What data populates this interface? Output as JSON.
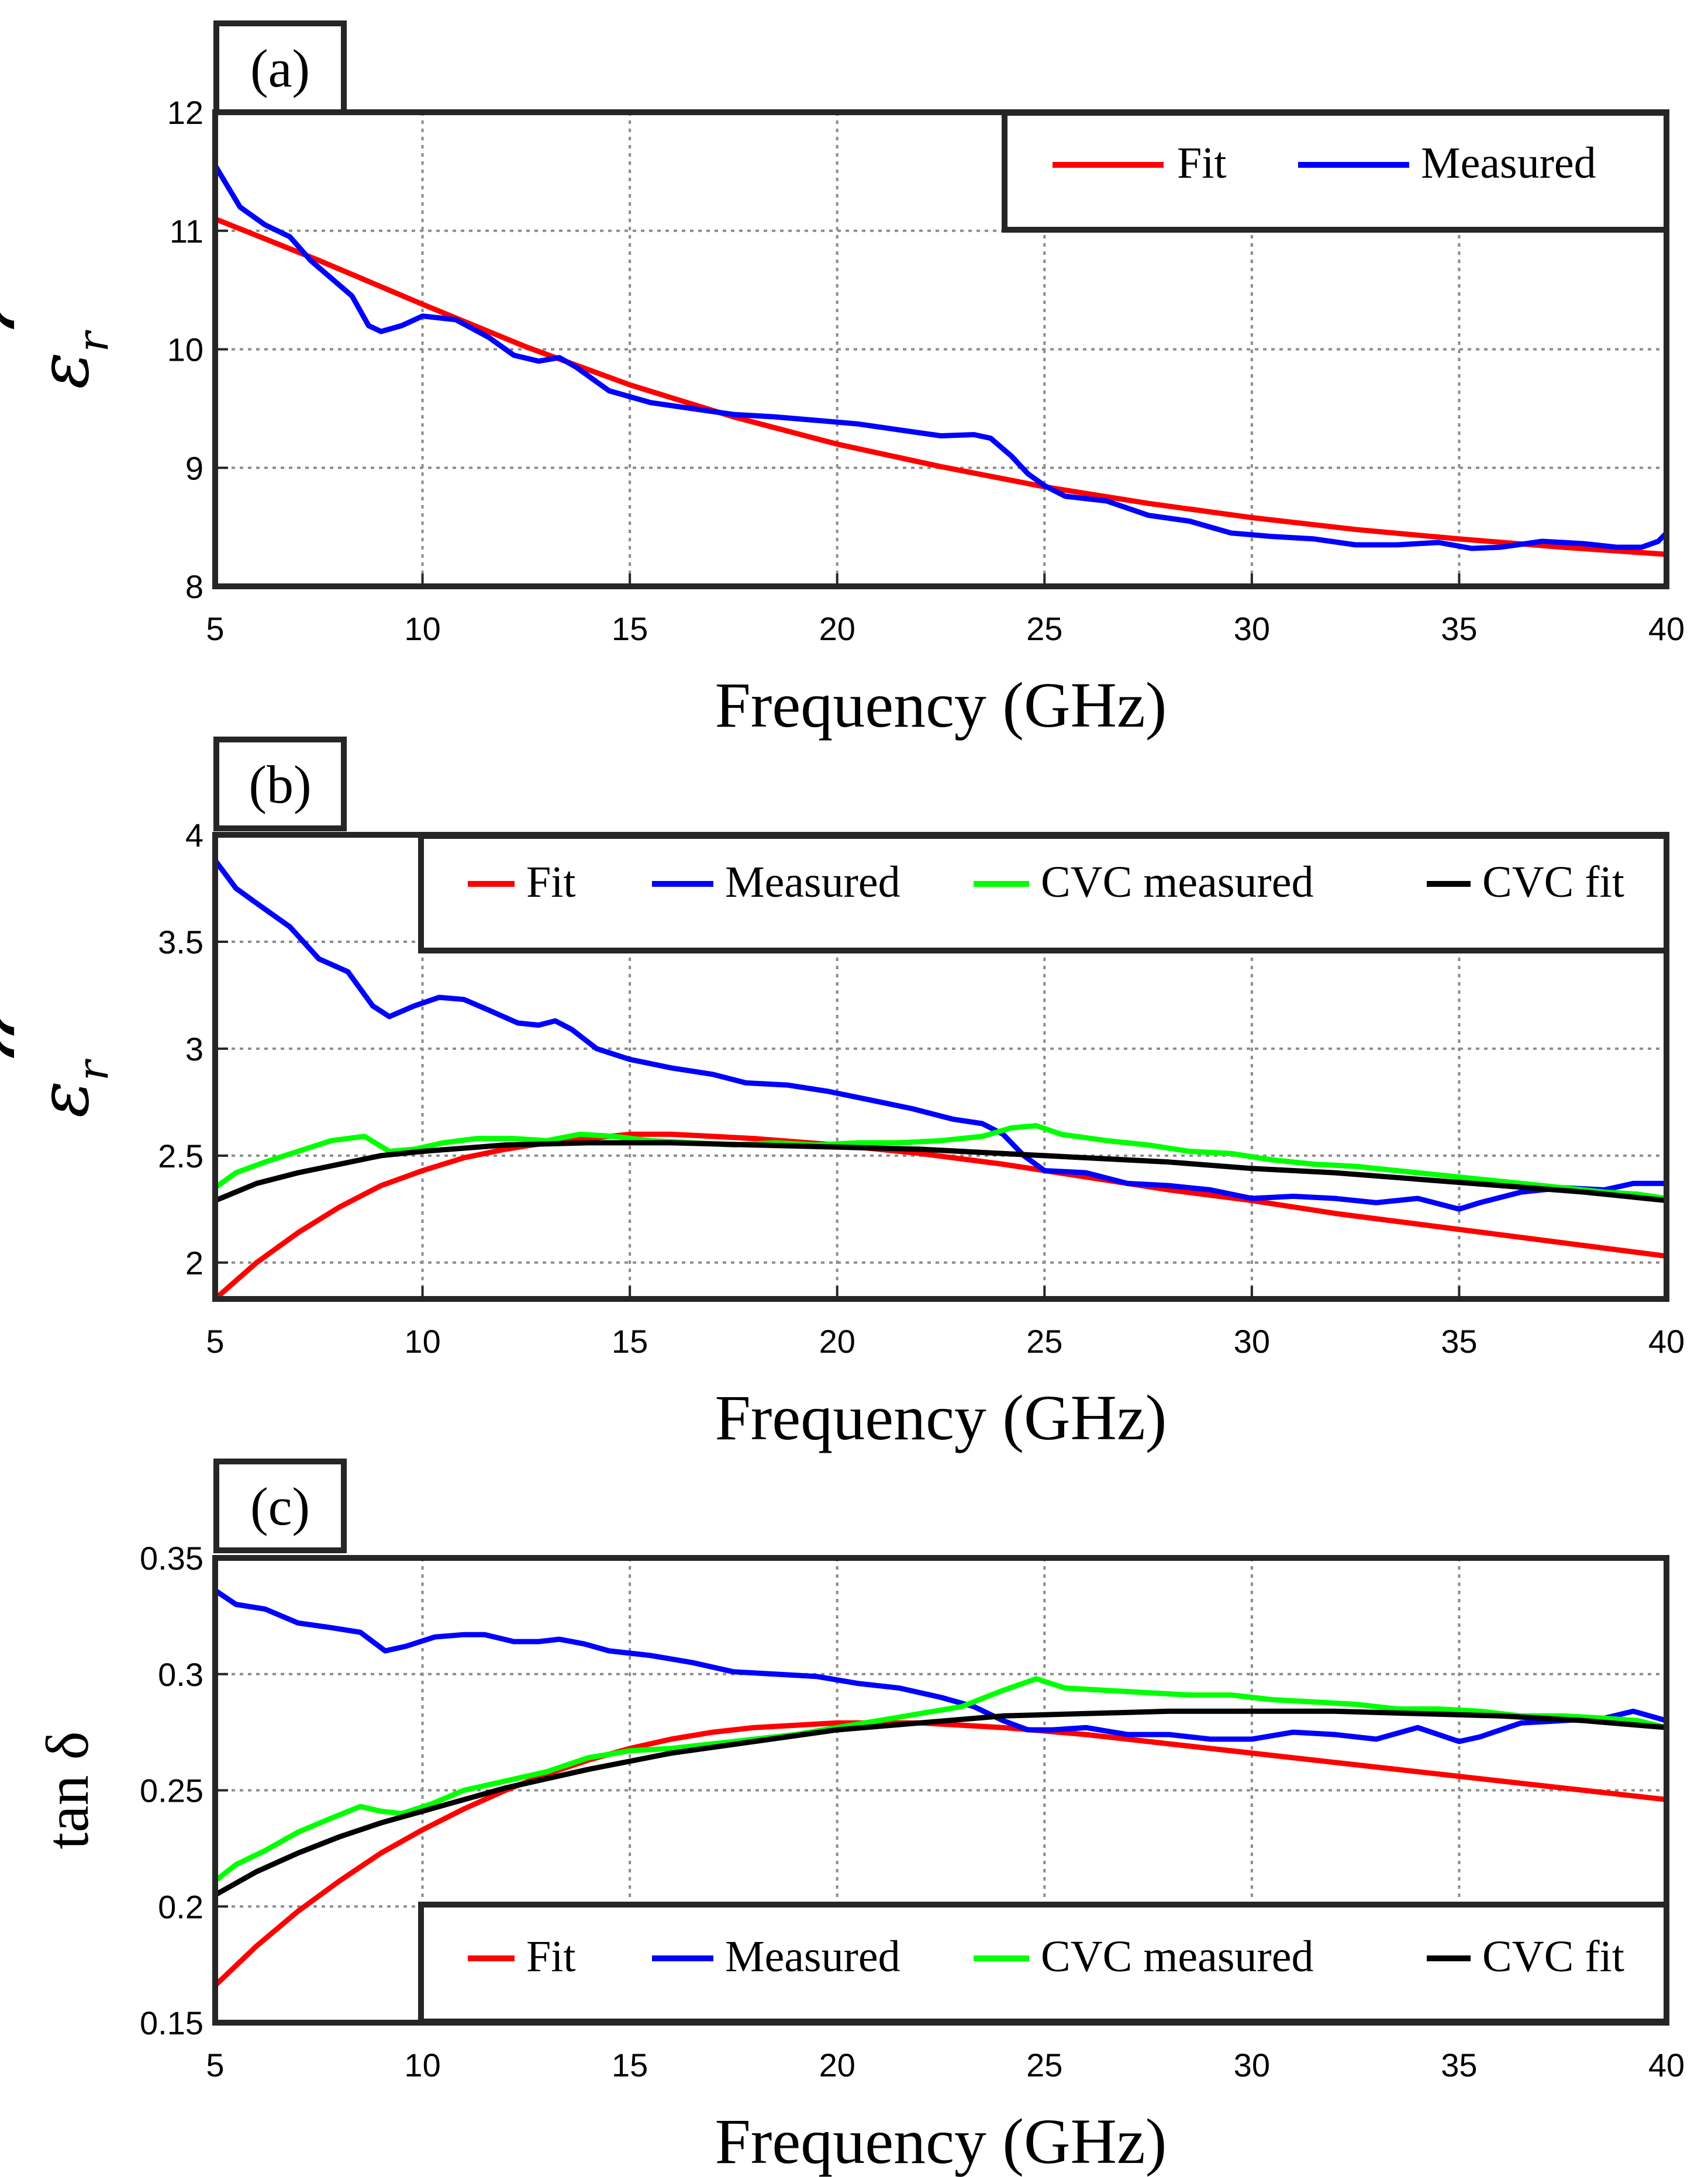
{
  "chart_data": [
    {
      "type": "line",
      "panel_label": "(a)",
      "ylabel": {
        "symbol": "ε",
        "sub": "r",
        "mark": "ʻ"
      },
      "xlabel": "Frequency (GHz)",
      "xlim": [
        5,
        40
      ],
      "ylim": [
        8,
        12
      ],
      "xticks": [
        "5",
        "10",
        "15",
        "20",
        "25",
        "30",
        "35",
        "40"
      ],
      "yticks": [
        "8",
        "9",
        "10",
        "11",
        "12"
      ],
      "grid": true,
      "legend_position": "top-right",
      "series": [
        {
          "name": "Fit",
          "color": "#ff0000",
          "x": [
            5,
            7.5,
            10,
            12.5,
            15,
            17.5,
            20,
            22.5,
            25,
            27.5,
            30,
            32.5,
            35,
            37.5,
            40
          ],
          "y": [
            11.1,
            10.75,
            10.38,
            10.02,
            9.7,
            9.43,
            9.2,
            9.01,
            8.84,
            8.7,
            8.58,
            8.48,
            8.4,
            8.33,
            8.27
          ]
        },
        {
          "name": "Measured",
          "color": "#0000ff",
          "x": [
            5,
            5.6,
            6.2,
            6.8,
            7.3,
            7.8,
            8.3,
            8.7,
            9.0,
            9.5,
            10.0,
            10.8,
            11.6,
            12.2,
            12.8,
            13.3,
            13.7,
            14.5,
            15.5,
            16.5,
            17.5,
            18.5,
            19.5,
            20.5,
            21.5,
            22.5,
            23.3,
            23.7,
            24.2,
            24.6,
            25.0,
            25.5,
            26.5,
            27.5,
            28.5,
            29.5,
            30.5,
            31.5,
            32.5,
            33.5,
            34.5,
            35.3,
            36.0,
            37.0,
            38.0,
            38.8,
            39.4,
            39.8,
            40
          ],
          "y": [
            11.55,
            11.2,
            11.05,
            10.95,
            10.75,
            10.6,
            10.45,
            10.2,
            10.15,
            10.2,
            10.28,
            10.25,
            10.1,
            9.95,
            9.9,
            9.93,
            9.85,
            9.65,
            9.55,
            9.5,
            9.45,
            9.43,
            9.4,
            9.37,
            9.32,
            9.27,
            9.28,
            9.25,
            9.1,
            8.95,
            8.85,
            8.76,
            8.72,
            8.6,
            8.55,
            8.45,
            8.42,
            8.4,
            8.35,
            8.35,
            8.37,
            8.32,
            8.33,
            8.38,
            8.36,
            8.33,
            8.33,
            8.38,
            8.45
          ]
        }
      ],
      "legend": [
        "Fit",
        "Measured"
      ]
    },
    {
      "type": "line",
      "panel_label": "(b)",
      "ylabel": {
        "symbol": "ε",
        "sub": "r",
        "mark": "ʻʻ"
      },
      "xlabel": "Frequency (GHz)",
      "xlim": [
        5,
        40
      ],
      "ylim": [
        1.83,
        4
      ],
      "xticks": [
        "5",
        "10",
        "15",
        "20",
        "25",
        "30",
        "35",
        "40"
      ],
      "yticks": [
        "2",
        "2.5",
        "3",
        "3.5",
        "4"
      ],
      "ytick_values": [
        2,
        2.5,
        3,
        3.5,
        4
      ],
      "grid": true,
      "legend_position": "top-right",
      "series": [
        {
          "name": "Fit",
          "color": "#ff0000",
          "x": [
            5,
            6,
            7,
            8,
            9,
            10,
            11,
            12,
            13,
            14,
            15,
            16,
            17,
            18,
            20,
            22,
            24,
            26,
            28,
            30,
            32,
            34,
            36,
            38,
            40
          ],
          "y": [
            1.83,
            2.0,
            2.14,
            2.26,
            2.36,
            2.43,
            2.49,
            2.53,
            2.56,
            2.58,
            2.6,
            2.6,
            2.59,
            2.58,
            2.55,
            2.51,
            2.46,
            2.4,
            2.34,
            2.29,
            2.23,
            2.18,
            2.13,
            2.08,
            2.03
          ]
        },
        {
          "name": "Measured",
          "color": "#0000ff",
          "x": [
            5,
            5.5,
            6.0,
            6.8,
            7.5,
            8.2,
            8.8,
            9.2,
            9.8,
            10.4,
            11.0,
            11.6,
            12.3,
            12.8,
            13.2,
            13.6,
            14.2,
            15.0,
            16.0,
            17.0,
            17.8,
            18.8,
            19.8,
            20.8,
            21.8,
            22.8,
            23.5,
            24.0,
            24.5,
            25.0,
            26.0,
            27.0,
            28.0,
            29.0,
            30.0,
            31.0,
            32.0,
            33.0,
            34.0,
            35.0,
            35.5,
            36.5,
            37.5,
            38.5,
            39.2,
            40
          ],
          "y": [
            3.88,
            3.75,
            3.68,
            3.57,
            3.42,
            3.36,
            3.2,
            3.15,
            3.2,
            3.24,
            3.23,
            3.18,
            3.12,
            3.11,
            3.13,
            3.09,
            3.0,
            2.95,
            2.91,
            2.88,
            2.84,
            2.83,
            2.8,
            2.76,
            2.72,
            2.67,
            2.65,
            2.6,
            2.5,
            2.43,
            2.42,
            2.37,
            2.36,
            2.34,
            2.3,
            2.31,
            2.3,
            2.28,
            2.3,
            2.25,
            2.28,
            2.33,
            2.35,
            2.34,
            2.37,
            2.37
          ]
        },
        {
          "name": "CVC measured",
          "color": "#00ff00",
          "x": [
            5,
            5.5,
            6.2,
            7.0,
            7.8,
            8.6,
            9.2,
            9.8,
            10.5,
            11.3,
            12.2,
            13.0,
            13.8,
            14.6,
            15.5,
            16.5,
            17.5,
            18.5,
            19.5,
            20.5,
            21.5,
            22.5,
            23.5,
            24.2,
            24.8,
            25.4,
            26.5,
            27.5,
            28.5,
            29.5,
            30.5,
            31.5,
            32.5,
            33.5,
            34.5,
            35.5,
            36.5,
            37.5,
            38.5,
            39.3,
            40
          ],
          "y": [
            2.35,
            2.42,
            2.47,
            2.52,
            2.57,
            2.59,
            2.52,
            2.53,
            2.56,
            2.58,
            2.58,
            2.57,
            2.6,
            2.59,
            2.57,
            2.56,
            2.55,
            2.56,
            2.55,
            2.56,
            2.56,
            2.57,
            2.59,
            2.63,
            2.64,
            2.6,
            2.57,
            2.55,
            2.52,
            2.51,
            2.48,
            2.46,
            2.45,
            2.43,
            2.41,
            2.39,
            2.37,
            2.35,
            2.33,
            2.32,
            2.3
          ]
        },
        {
          "name": "CVC fit",
          "color": "#000000",
          "x": [
            5,
            6,
            7,
            8,
            9,
            10,
            12,
            14,
            16,
            18,
            20,
            22,
            24,
            26,
            28,
            30,
            32,
            34,
            36,
            38,
            40
          ],
          "y": [
            2.29,
            2.37,
            2.42,
            2.46,
            2.5,
            2.52,
            2.55,
            2.56,
            2.56,
            2.55,
            2.54,
            2.53,
            2.51,
            2.49,
            2.47,
            2.44,
            2.42,
            2.39,
            2.36,
            2.33,
            2.29
          ]
        }
      ],
      "legend": [
        "Fit",
        "Measured",
        "CVC measured",
        "CVC fit"
      ]
    },
    {
      "type": "line",
      "panel_label": "(c)",
      "ylabel": {
        "text": "tan δ"
      },
      "xlabel": "Frequency (GHz)",
      "xlim": [
        5,
        40
      ],
      "ylim": [
        0.15,
        0.35
      ],
      "xticks": [
        "5",
        "10",
        "15",
        "20",
        "25",
        "30",
        "35",
        "40"
      ],
      "yticks": [
        "0.15",
        "0.2",
        "0.25",
        "0.3",
        "0.35"
      ],
      "ytick_values": [
        0.15,
        0.2,
        0.25,
        0.3,
        0.35
      ],
      "grid": true,
      "legend_position": "bottom-right",
      "series": [
        {
          "name": "Fit",
          "color": "#ff0000",
          "x": [
            5,
            6,
            7,
            8,
            9,
            10,
            11,
            12,
            13,
            14,
            15,
            16,
            17,
            18,
            19,
            20,
            21,
            22,
            24,
            26,
            28,
            30,
            32,
            34,
            36,
            38,
            40
          ],
          "y": [
            0.166,
            0.183,
            0.198,
            0.211,
            0.223,
            0.233,
            0.242,
            0.25,
            0.257,
            0.263,
            0.268,
            0.272,
            0.275,
            0.277,
            0.278,
            0.279,
            0.279,
            0.279,
            0.277,
            0.274,
            0.27,
            0.266,
            0.262,
            0.258,
            0.254,
            0.25,
            0.246
          ]
        },
        {
          "name": "Measured",
          "color": "#0000ff",
          "x": [
            5,
            5.5,
            6.2,
            7.0,
            7.8,
            8.5,
            9.1,
            9.6,
            10.3,
            11.0,
            11.5,
            12.2,
            12.8,
            13.3,
            13.9,
            14.5,
            15.5,
            16.5,
            17.5,
            18.5,
            19.5,
            20.5,
            21.5,
            22.5,
            23.3,
            24.0,
            24.6,
            25.2,
            26.0,
            27.0,
            28.0,
            29.0,
            30.0,
            31.0,
            32.0,
            33.0,
            34.0,
            35.0,
            35.5,
            36.5,
            37.5,
            38.5,
            39.2,
            40
          ],
          "y": [
            0.336,
            0.33,
            0.328,
            0.322,
            0.32,
            0.318,
            0.31,
            0.312,
            0.316,
            0.317,
            0.317,
            0.314,
            0.314,
            0.315,
            0.313,
            0.31,
            0.308,
            0.305,
            0.301,
            0.3,
            0.299,
            0.296,
            0.294,
            0.29,
            0.286,
            0.28,
            0.276,
            0.276,
            0.277,
            0.274,
            0.274,
            0.272,
            0.272,
            0.275,
            0.274,
            0.272,
            0.277,
            0.271,
            0.273,
            0.279,
            0.28,
            0.281,
            0.284,
            0.28
          ]
        },
        {
          "name": "CVC measured",
          "color": "#00ff00",
          "x": [
            5,
            5.5,
            6.2,
            7.0,
            7.8,
            8.5,
            9.0,
            9.5,
            10.2,
            11.0,
            12.0,
            13.0,
            14.0,
            15.0,
            16.0,
            17.0,
            18.0,
            19.0,
            20.0,
            21.0,
            22.0,
            23.0,
            24.0,
            24.8,
            25.5,
            26.5,
            27.5,
            28.5,
            29.5,
            30.5,
            31.5,
            32.5,
            33.5,
            34.5,
            35.5,
            36.5,
            37.5,
            38.5,
            39.3,
            40
          ],
          "y": [
            0.211,
            0.218,
            0.224,
            0.232,
            0.238,
            0.243,
            0.241,
            0.24,
            0.244,
            0.25,
            0.254,
            0.258,
            0.264,
            0.267,
            0.268,
            0.27,
            0.272,
            0.274,
            0.277,
            0.28,
            0.283,
            0.286,
            0.293,
            0.298,
            0.294,
            0.293,
            0.292,
            0.291,
            0.291,
            0.289,
            0.288,
            0.287,
            0.285,
            0.285,
            0.284,
            0.282,
            0.282,
            0.281,
            0.28,
            0.277
          ]
        },
        {
          "name": "CVC fit",
          "color": "#000000",
          "x": [
            5,
            6,
            7,
            8,
            9,
            10,
            12,
            14,
            16,
            18,
            20,
            22,
            24,
            26,
            28,
            30,
            32,
            34,
            36,
            38,
            40
          ],
          "y": [
            0.205,
            0.215,
            0.223,
            0.23,
            0.236,
            0.241,
            0.251,
            0.259,
            0.266,
            0.271,
            0.276,
            0.279,
            0.282,
            0.283,
            0.284,
            0.284,
            0.284,
            0.283,
            0.282,
            0.28,
            0.277
          ]
        }
      ],
      "legend": [
        "Fit",
        "Measured",
        "CVC measured",
        "CVC fit"
      ]
    }
  ]
}
